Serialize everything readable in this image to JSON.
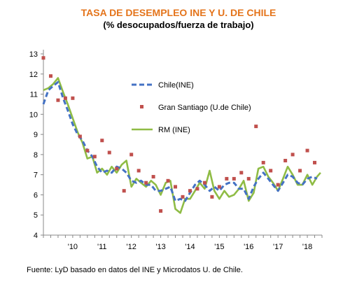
{
  "chart_data": {
    "type": "line",
    "title": "TASA DE DESEMPLEO INE Y U. DE CHILE",
    "subtitle": "(% desocupados/fuerza de trabajo)",
    "source": "Fuente: LyD basado en datos del INE y Microdatos U. de Chile.",
    "ylim": [
      4,
      13
    ],
    "yticks": [
      "4",
      "5",
      "6",
      "7",
      "8",
      "9",
      "10",
      "11",
      "12",
      "13"
    ],
    "xlim": [
      2009.0,
      2018.5
    ],
    "xticks": [
      {
        "x": 2010,
        "label": "'10"
      },
      {
        "x": 2011,
        "label": "'11"
      },
      {
        "x": 2012,
        "label": "'12"
      },
      {
        "x": 2013,
        "label": "'13"
      },
      {
        "x": 2014,
        "label": "'14"
      },
      {
        "x": 2015,
        "label": "'15"
      },
      {
        "x": 2016,
        "label": "'16"
      },
      {
        "x": 2017,
        "label": "'17"
      },
      {
        "x": 2018,
        "label": "'18"
      }
    ],
    "grid": false,
    "legend": "center",
    "series": [
      {
        "name": "Chile(INE)",
        "style": "dashed",
        "color": "#4472c4",
        "x": [
          2009.0,
          2009.17,
          2009.33,
          2009.5,
          2009.67,
          2009.83,
          2010.0,
          2010.17,
          2010.33,
          2010.5,
          2010.67,
          2010.83,
          2011.0,
          2011.17,
          2011.33,
          2011.5,
          2011.67,
          2011.83,
          2012.0,
          2012.17,
          2012.33,
          2012.5,
          2012.67,
          2012.83,
          2013.0,
          2013.17,
          2013.33,
          2013.5,
          2013.67,
          2013.83,
          2014.0,
          2014.17,
          2014.33,
          2014.5,
          2014.67,
          2014.83,
          2015.0,
          2015.17,
          2015.33,
          2015.5,
          2015.67,
          2015.83,
          2016.0,
          2016.17,
          2016.33,
          2016.5,
          2016.67,
          2016.83,
          2017.0,
          2017.17,
          2017.33,
          2017.5,
          2017.67,
          2017.83,
          2018.0,
          2018.17,
          2018.33
        ],
        "values": [
          10.5,
          11.2,
          11.4,
          11.6,
          10.8,
          10.2,
          9.5,
          9.0,
          8.7,
          8.2,
          7.9,
          7.4,
          7.1,
          7.2,
          7.1,
          7.4,
          7.3,
          7.1,
          6.7,
          6.6,
          6.7,
          6.5,
          6.5,
          6.2,
          6.2,
          6.3,
          6.4,
          5.7,
          5.8,
          5.7,
          6.1,
          6.5,
          6.7,
          6.5,
          6.2,
          6.4,
          6.2,
          6.5,
          6.6,
          6.6,
          6.3,
          6.3,
          5.8,
          6.4,
          6.8,
          7.1,
          6.8,
          6.5,
          6.2,
          6.6,
          7.0,
          6.9,
          6.6,
          6.5,
          6.8,
          6.9,
          6.8
        ]
      },
      {
        "name": "Gran  Santiago (U.de Chile)",
        "style": "markers",
        "color": "#c0504d",
        "x": [
          2009.0,
          2009.25,
          2009.5,
          2009.75,
          2010.0,
          2010.25,
          2010.5,
          2010.75,
          2011.0,
          2011.25,
          2011.5,
          2011.75,
          2012.0,
          2012.25,
          2012.5,
          2012.75,
          2013.0,
          2013.25,
          2013.5,
          2013.75,
          2014.0,
          2014.25,
          2014.5,
          2014.75,
          2015.0,
          2015.25,
          2015.5,
          2015.75,
          2016.0,
          2016.25,
          2016.5,
          2016.75,
          2017.0,
          2017.25,
          2017.5,
          2017.75,
          2018.0,
          2018.25
        ],
        "values": [
          12.8,
          11.9,
          10.7,
          10.8,
          10.8,
          8.9,
          8.2,
          7.9,
          8.7,
          8.1,
          7.3,
          6.2,
          8.0,
          7.2,
          6.6,
          6.9,
          5.2,
          6.7,
          6.4,
          5.9,
          6.2,
          6.3,
          6.6,
          5.9,
          6.4,
          6.8,
          6.8,
          7.1,
          6.8,
          9.4,
          7.6,
          7.2,
          6.5,
          7.7,
          8.0,
          7.2,
          8.2,
          7.6
        ]
      },
      {
        "name": "RM (INE)",
        "style": "solid",
        "color": "#8fbc45",
        "x": [
          2009.0,
          2009.17,
          2009.33,
          2009.5,
          2009.67,
          2009.83,
          2010.0,
          2010.17,
          2010.33,
          2010.5,
          2010.67,
          2010.83,
          2011.0,
          2011.17,
          2011.33,
          2011.5,
          2011.67,
          2011.83,
          2012.0,
          2012.17,
          2012.33,
          2012.5,
          2012.67,
          2012.83,
          2013.0,
          2013.17,
          2013.33,
          2013.5,
          2013.67,
          2013.83,
          2014.0,
          2014.17,
          2014.33,
          2014.5,
          2014.67,
          2014.83,
          2015.0,
          2015.17,
          2015.33,
          2015.5,
          2015.67,
          2015.83,
          2016.0,
          2016.17,
          2016.33,
          2016.5,
          2016.67,
          2016.83,
          2017.0,
          2017.17,
          2017.33,
          2017.5,
          2017.67,
          2017.83,
          2018.0,
          2018.17,
          2018.33,
          2018.45
        ],
        "values": [
          11.2,
          11.3,
          11.5,
          11.8,
          11.1,
          10.5,
          9.8,
          9.1,
          8.6,
          7.8,
          7.9,
          7.1,
          7.3,
          7.0,
          7.4,
          7.1,
          7.5,
          7.7,
          6.4,
          6.8,
          6.6,
          6.4,
          6.7,
          6.5,
          6.0,
          6.6,
          6.7,
          5.3,
          5.1,
          5.8,
          5.8,
          6.2,
          6.6,
          6.3,
          7.2,
          6.2,
          5.8,
          6.2,
          5.9,
          6.0,
          6.3,
          6.7,
          5.7,
          6.1,
          7.3,
          7.4,
          6.9,
          6.6,
          6.2,
          6.8,
          7.4,
          7.0,
          6.5,
          6.5,
          7.0,
          6.5,
          6.9,
          7.1
        ]
      }
    ]
  }
}
